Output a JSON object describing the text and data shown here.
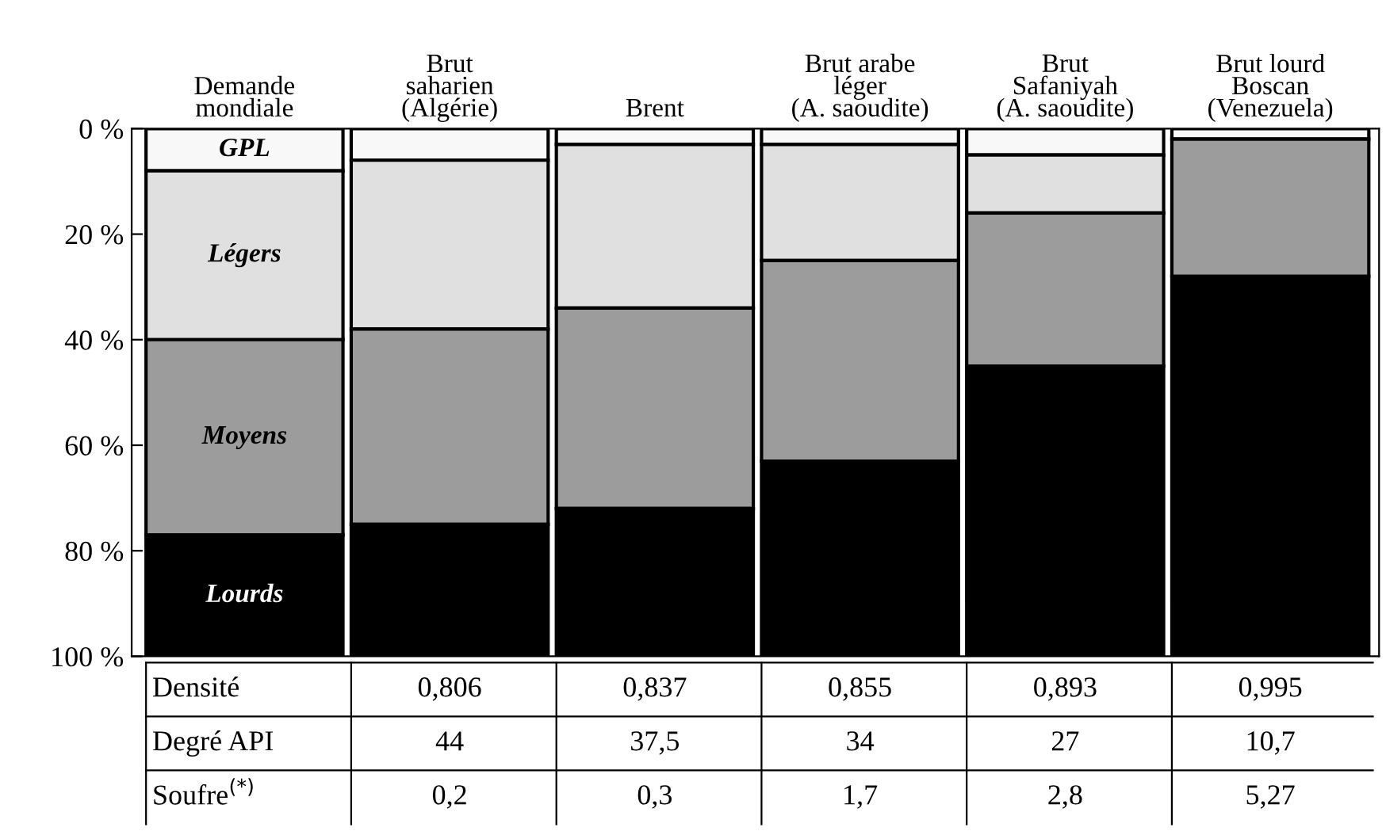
{
  "chart_data": {
    "type": "bar",
    "stacked": true,
    "categories": [
      "Demande\nmondiale",
      "Brut\nsaharien\n(Algérie)",
      "Brent",
      "Brut arabe\nléger\n(A. saoudite)",
      "Brut\nSafaniyah\n(A. saoudite)",
      "Brut lourd\nBoscan\n(Venezuela)"
    ],
    "series": [
      {
        "name": "GPL",
        "color": "#f8f8f8",
        "values": [
          8,
          6,
          3,
          3,
          5,
          2
        ]
      },
      {
        "name": "Légers",
        "color": "#e0e0e0",
        "values": [
          32,
          32,
          31,
          22,
          11,
          0
        ]
      },
      {
        "name": "Moyens",
        "color": "#9c9c9c",
        "values": [
          37,
          37,
          38,
          38,
          29,
          26
        ]
      },
      {
        "name": "Lourds",
        "color": "#000000",
        "values": [
          23,
          25,
          28,
          37,
          55,
          72
        ]
      }
    ],
    "ylim": [
      100,
      0
    ],
    "yticks": [
      {
        "value": 0,
        "label": "0 %"
      },
      {
        "value": 20,
        "label": "20 %"
      },
      {
        "value": 40,
        "label": "40 %"
      },
      {
        "value": 60,
        "label": "60 %"
      },
      {
        "value": 80,
        "label": "80 %"
      },
      {
        "value": 100,
        "label": "100 %"
      }
    ],
    "grid": false,
    "legend": false,
    "annotations": [
      "Densité",
      "0,806",
      "0,837",
      "0,855",
      "0,893",
      "0,995",
      "Degré API",
      "44",
      "37,5",
      "34",
      "27",
      "10,7",
      "Soufre$^{(*)}$",
      "0,2",
      "0,3",
      "1,7",
      "2,8",
      "5,27"
    ]
  }
}
